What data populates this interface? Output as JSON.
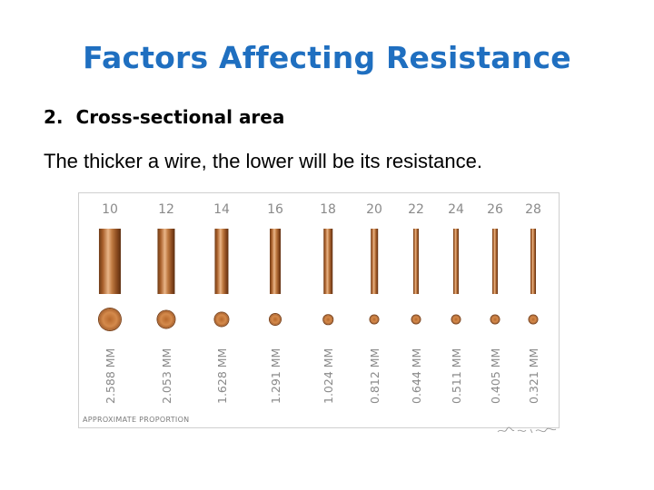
{
  "slide": {
    "title": "Factors Affecting Resistance",
    "subhead_number": "2.",
    "subhead_text": "Cross-sectional area",
    "body": "The thicker a wire, the lower will be its resistance."
  },
  "figure": {
    "gauges": [
      {
        "gauge": "10",
        "diameter": "2.588 MM",
        "diameter_mm": 2.588
      },
      {
        "gauge": "12",
        "diameter": "2.053 MM",
        "diameter_mm": 2.053
      },
      {
        "gauge": "14",
        "diameter": "1.628 MM",
        "diameter_mm": 1.628
      },
      {
        "gauge": "16",
        "diameter": "1.291 MM",
        "diameter_mm": 1.291
      },
      {
        "gauge": "18",
        "diameter": "1.024 MM",
        "diameter_mm": 1.024
      },
      {
        "gauge": "20",
        "diameter": "0.812 MM",
        "diameter_mm": 0.812
      },
      {
        "gauge": "22",
        "diameter": "0.644 MM",
        "diameter_mm": 0.644
      },
      {
        "gauge": "24",
        "diameter": "0.511 MM",
        "diameter_mm": 0.511
      },
      {
        "gauge": "26",
        "diameter": "0.405 MM",
        "diameter_mm": 0.405
      },
      {
        "gauge": "28",
        "diameter": "0.321 MM",
        "diameter_mm": 0.321
      }
    ],
    "note": "APPROXIMATE PROPORTION",
    "signature": "Wire 2 Craft",
    "colors": {
      "copper_dark": "#6e3a16",
      "copper_light": "#e9b588",
      "label_gray": "#8a8a8a"
    }
  }
}
